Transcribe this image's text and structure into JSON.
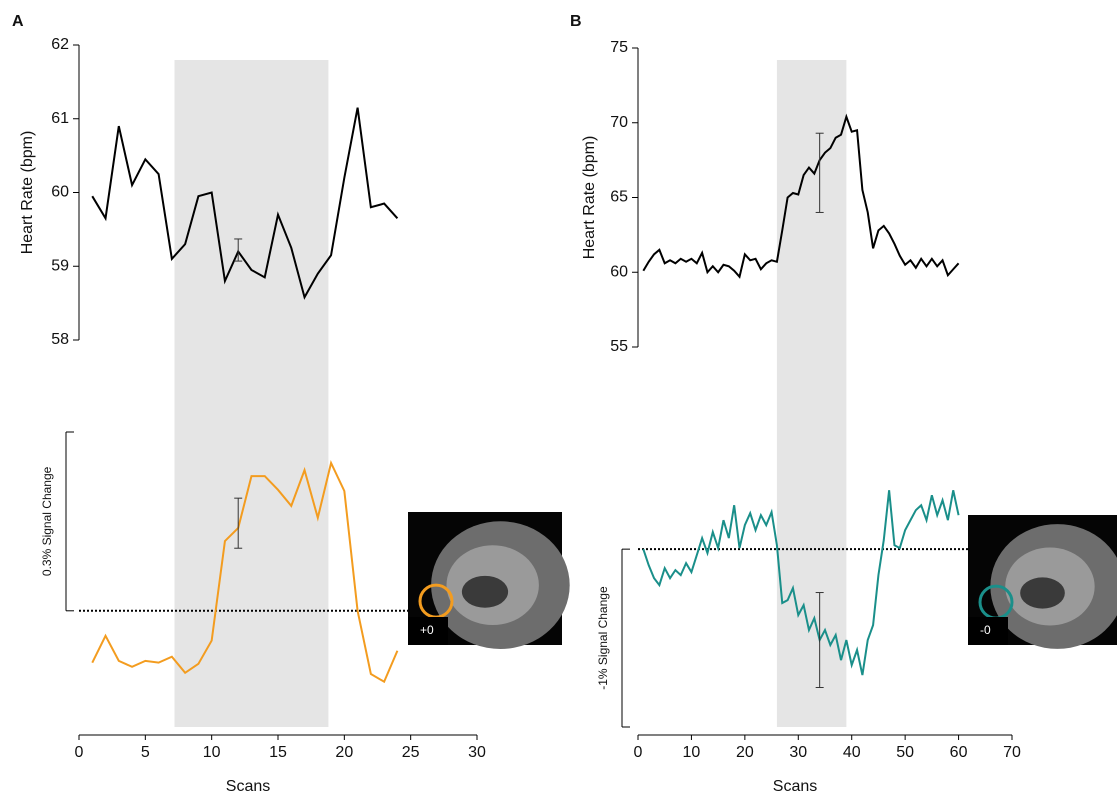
{
  "chart_data": [
    {
      "type": "line",
      "panel": "A",
      "xlabel": "Scans",
      "xlim": [
        0,
        30
      ],
      "xticks": [
        0,
        5,
        10,
        15,
        20,
        25,
        30
      ],
      "shade": [
        7.2,
        18.8
      ],
      "inset_label": "+0",
      "heart_rate": {
        "ylabel": "Heart Rate (bpm)",
        "ylim": [
          58,
          62
        ],
        "yticks": [
          58,
          59,
          60,
          61,
          62
        ],
        "color": "#000000",
        "x": [
          1,
          2,
          3,
          4,
          5,
          6,
          7,
          8,
          9,
          10,
          11,
          12,
          13,
          14,
          15,
          16,
          17,
          18,
          19,
          20,
          21,
          22,
          23,
          24
        ],
        "values": [
          59.95,
          59.65,
          60.9,
          60.1,
          60.45,
          60.25,
          59.1,
          59.3,
          59.95,
          60.0,
          58.8,
          59.2,
          58.95,
          58.85,
          59.7,
          59.25,
          58.58,
          58.9,
          59.15,
          60.2,
          61.15,
          59.8,
          59.85,
          59.65
        ],
        "error": {
          "x": 12,
          "value": 59.22,
          "err": 0.15
        }
      },
      "signal": {
        "label": "0.3% Signal Change",
        "scale": 0.3,
        "ylim": [
          -0.2,
          0.3
        ],
        "color": "#f39c1f",
        "x": [
          1,
          2,
          3,
          4,
          5,
          6,
          7,
          8,
          9,
          10,
          11,
          12,
          13,
          14,
          15,
          16,
          17,
          18,
          19,
          20,
          21,
          22,
          23,
          24
        ],
        "values": [
          -0.087,
          -0.042,
          -0.084,
          -0.094,
          -0.084,
          -0.087,
          -0.077,
          -0.104,
          -0.089,
          -0.05,
          0.117,
          0.139,
          0.226,
          0.226,
          0.203,
          0.176,
          0.236,
          0.156,
          0.248,
          0.201,
          0,
          -0.106,
          -0.119,
          -0.067
        ],
        "error": {
          "x": 12,
          "value": 0.147,
          "err": 0.042
        }
      }
    },
    {
      "type": "line",
      "panel": "B",
      "xlabel": "Scans",
      "xlim": [
        0,
        70
      ],
      "xticks": [
        0,
        10,
        20,
        30,
        40,
        50,
        60,
        70
      ],
      "shade": [
        26,
        39
      ],
      "inset_label": "-0",
      "heart_rate": {
        "ylabel": "Heart Rate (bpm)",
        "ylim": [
          55,
          75
        ],
        "yticks": [
          55,
          60,
          65,
          70,
          75
        ],
        "color": "#000000",
        "x": [
          1,
          2,
          3,
          4,
          5,
          6,
          7,
          8,
          9,
          10,
          11,
          12,
          13,
          14,
          15,
          16,
          17,
          18,
          19,
          20,
          21,
          22,
          23,
          24,
          25,
          26,
          27,
          28,
          29,
          30,
          31,
          32,
          33,
          34,
          35,
          36,
          37,
          38,
          39,
          40,
          41,
          42,
          43,
          44,
          45,
          46,
          47,
          48,
          49,
          50,
          51,
          52,
          53,
          54,
          55,
          56,
          57,
          58,
          59,
          60
        ],
        "values": [
          60.1,
          60.7,
          61.2,
          61.5,
          60.6,
          60.8,
          60.6,
          60.9,
          60.7,
          60.9,
          60.6,
          61.3,
          60.0,
          60.4,
          60.0,
          60.5,
          60.4,
          60.1,
          59.7,
          61.2,
          60.8,
          60.9,
          60.2,
          60.6,
          60.8,
          60.7,
          62.8,
          65.0,
          65.3,
          65.2,
          66.5,
          67.0,
          66.6,
          67.5,
          68.0,
          68.3,
          69.0,
          69.2,
          70.4,
          69.4,
          69.5,
          65.5,
          64.0,
          61.6,
          62.8,
          63.1,
          62.6,
          61.9,
          61.1,
          60.5,
          60.8,
          60.3,
          60.9,
          60.4,
          60.9,
          60.4,
          60.8,
          59.8,
          60.2,
          60.6
        ],
        "error": {
          "x": 34,
          "value": 66.65,
          "err": 2.65
        }
      },
      "signal": {
        "label": "-1% Signal Change",
        "scale": -1,
        "ylim": [
          -1,
          0.4
        ],
        "color": "#1a8f8a",
        "x": [
          1,
          2,
          3,
          4,
          5,
          6,
          7,
          8,
          9,
          10,
          11,
          12,
          13,
          14,
          15,
          16,
          17,
          18,
          19,
          20,
          21,
          22,
          23,
          24,
          25,
          26,
          27,
          28,
          29,
          30,
          31,
          32,
          33,
          34,
          35,
          36,
          37,
          38,
          39,
          40,
          41,
          42,
          43,
          44,
          45,
          46,
          47,
          48,
          49,
          50,
          51,
          52,
          53,
          54,
          55,
          56,
          57,
          58,
          59,
          60
        ],
        "values": [
          0,
          -0.09,
          -0.163,
          -0.202,
          -0.107,
          -0.163,
          -0.118,
          -0.146,
          -0.079,
          -0.129,
          -0.034,
          0.062,
          -0.022,
          0.096,
          0.006,
          0.163,
          0.062,
          0.247,
          0.006,
          0.135,
          0.202,
          0.107,
          0.191,
          0.135,
          0.208,
          0.022,
          -0.303,
          -0.287,
          -0.219,
          -0.371,
          -0.315,
          -0.455,
          -0.388,
          -0.511,
          -0.455,
          -0.539,
          -0.483,
          -0.624,
          -0.511,
          -0.652,
          -0.567,
          -0.708,
          -0.511,
          -0.427,
          -0.146,
          0.051,
          0.331,
          0.022,
          0.006,
          0.107,
          0.163,
          0.219,
          0.247,
          0.163,
          0.303,
          0.191,
          0.275,
          0.163,
          0.331,
          0.191
        ],
        "error": {
          "x": 34,
          "value": -0.511,
          "err": 0.267
        }
      }
    }
  ]
}
